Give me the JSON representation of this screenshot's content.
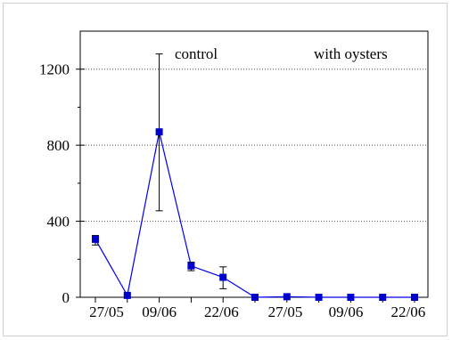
{
  "chart_data": {
    "type": "line",
    "title": "",
    "xlabel": "",
    "ylabel": "",
    "ylim": [
      0,
      1400
    ],
    "y_ticks": [
      0,
      400,
      800,
      1200
    ],
    "y_minor_ticks": [
      200,
      600,
      1000
    ],
    "grid": "horizontal dotted at 400, 800, 1200",
    "x_tick_labels": [
      "27/05",
      "09/06",
      "22/06",
      "27/05",
      "09/06",
      "22/06"
    ],
    "annotations": [
      "control",
      "with oysters"
    ],
    "colors": {
      "series": "#0000ee",
      "marker": "#0000cc",
      "error_bars": "#000000",
      "axes": "#000000",
      "grid": "#555555"
    },
    "series": [
      {
        "points": [
          {
            "x": 1,
            "y": 305,
            "err_low": 275,
            "err_high": 325
          },
          {
            "x": 2,
            "y": 10,
            "err_low": 5,
            "err_high": 15
          },
          {
            "x": 3,
            "y": 870,
            "err_low": 455,
            "err_high": 1280
          },
          {
            "x": 4,
            "y": 165,
            "err_low": 140,
            "err_high": 185
          },
          {
            "x": 5,
            "y": 105,
            "err_low": 45,
            "err_high": 160
          },
          {
            "x": 6,
            "y": 0
          },
          {
            "x": 7,
            "y": 3
          },
          {
            "x": 8,
            "y": 0
          },
          {
            "x": 9,
            "y": 0
          },
          {
            "x": 10,
            "y": 0
          },
          {
            "x": 11,
            "y": 0
          }
        ]
      }
    ]
  }
}
